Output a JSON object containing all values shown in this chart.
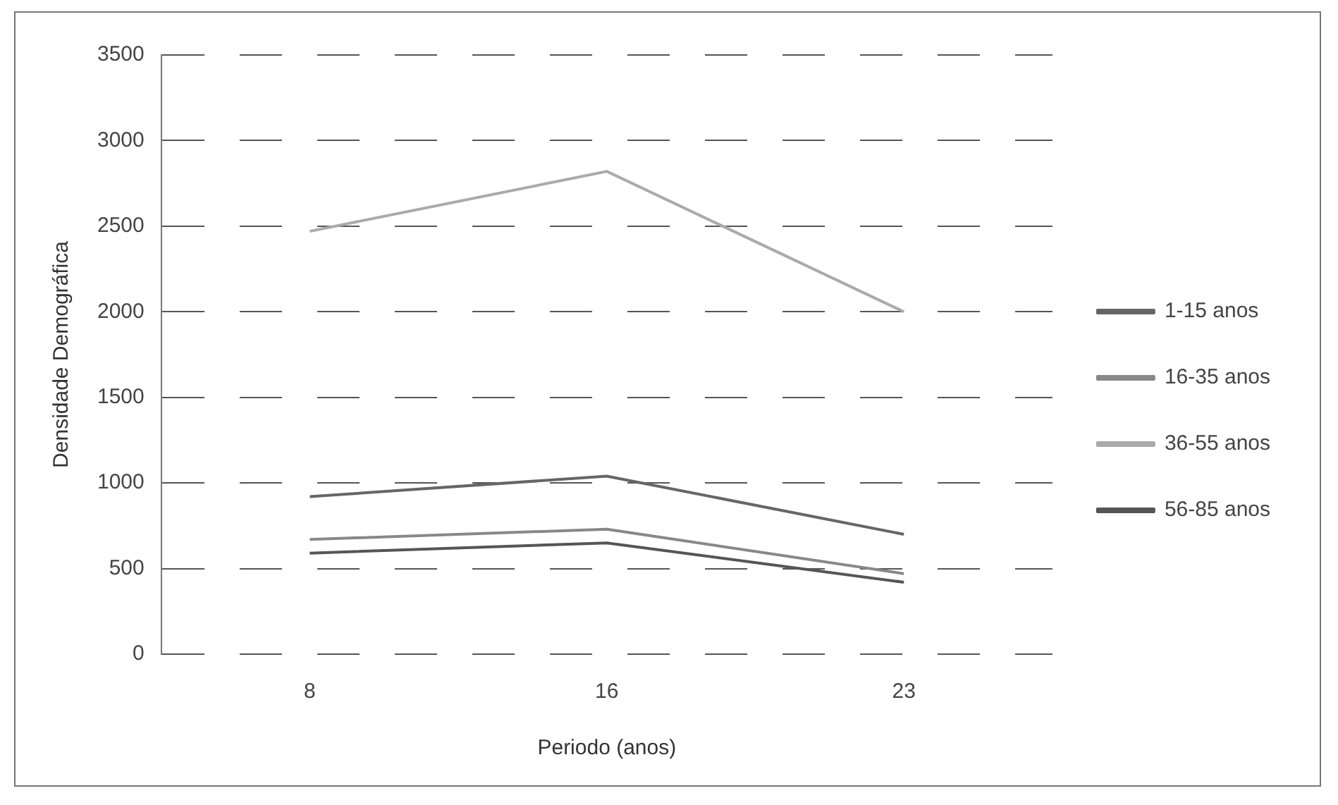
{
  "chart_data": {
    "type": "line",
    "xlabel": "Periodo (anos)",
    "ylabel": "Densidade Demográfica",
    "categories": [
      "8",
      "16",
      "23"
    ],
    "series": [
      {
        "name": "1-15 anos",
        "color": "#666666",
        "values": [
          920,
          1040,
          700
        ]
      },
      {
        "name": "16-35 anos",
        "color": "#888888",
        "values": [
          670,
          730,
          470
        ]
      },
      {
        "name": "36-55 anos",
        "color": "#aaaaaa",
        "values": [
          2470,
          2820,
          2000
        ]
      },
      {
        "name": "56-85 anos",
        "color": "#555555",
        "values": [
          590,
          650,
          420
        ]
      }
    ],
    "ylim": [
      0,
      3500
    ],
    "yticks": [
      0,
      500,
      1000,
      1500,
      2000,
      2500,
      3000,
      3500
    ],
    "grid": "y",
    "legend": "right",
    "marker": "none",
    "line_style": "solid"
  }
}
